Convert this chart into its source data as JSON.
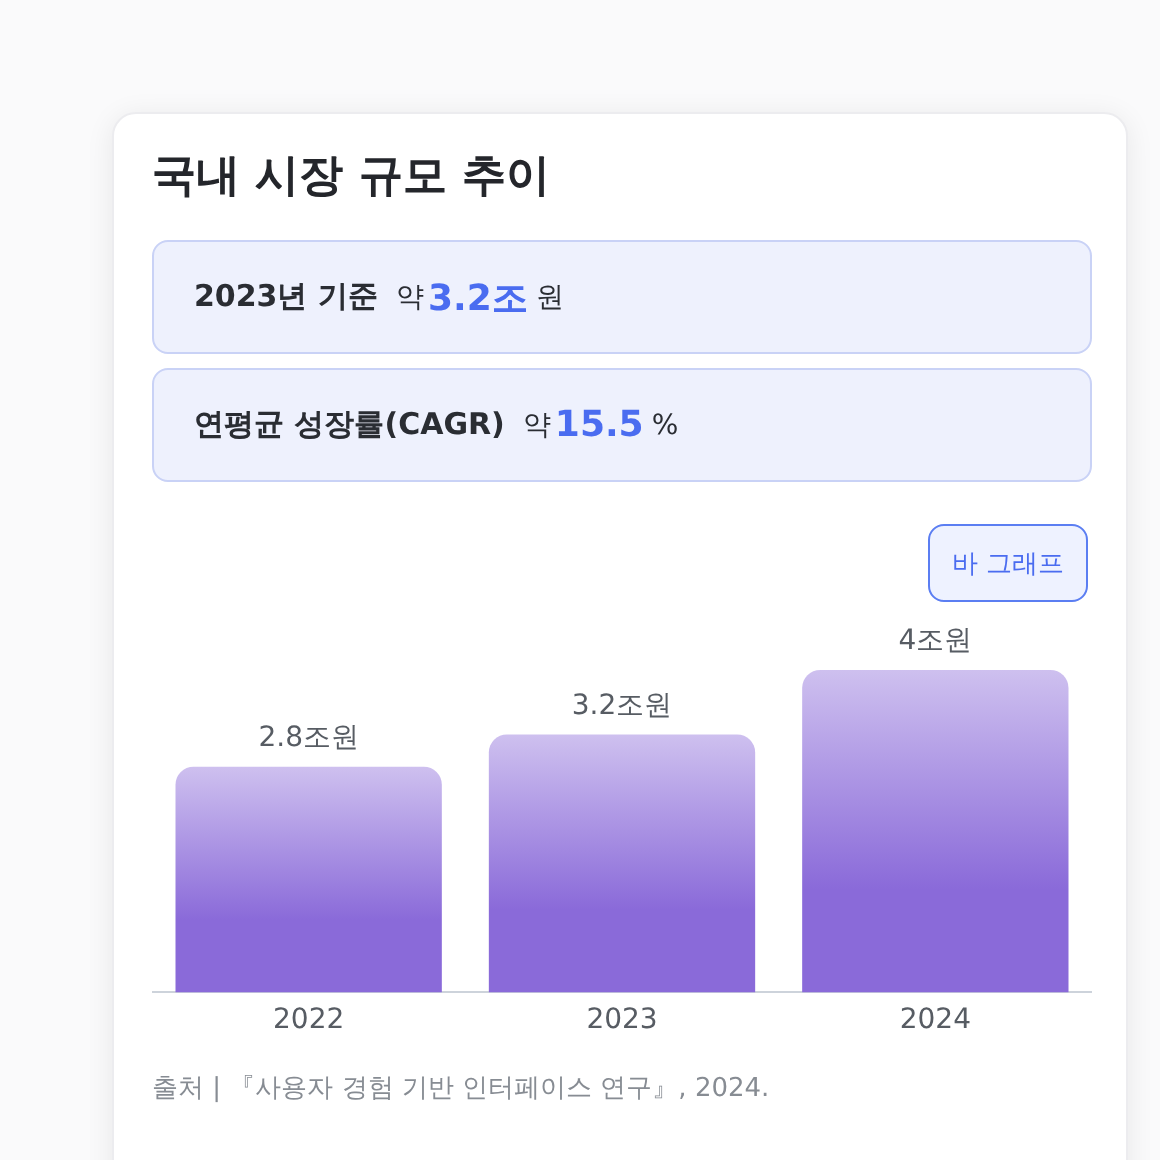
{
  "chart_data": {
    "type": "bar",
    "title": "국내 시장 규모 추이",
    "categories": [
      "2022",
      "2023",
      "2024"
    ],
    "values": [
      2.8,
      3.2,
      4
    ],
    "value_labels": [
      "2.8조원",
      "3.2조원",
      "4조원"
    ],
    "color": "#8a6ad9",
    "annotations": [
      "2023년 기준",
      "약",
      "3.2조",
      "원",
      "연평균 성장률(CAGR)",
      "약",
      "15.5",
      "%",
      "바 그래프",
      "출처 | 『사용자 경험 기반 인터페이스 연구』, 2024."
    ]
  }
}
